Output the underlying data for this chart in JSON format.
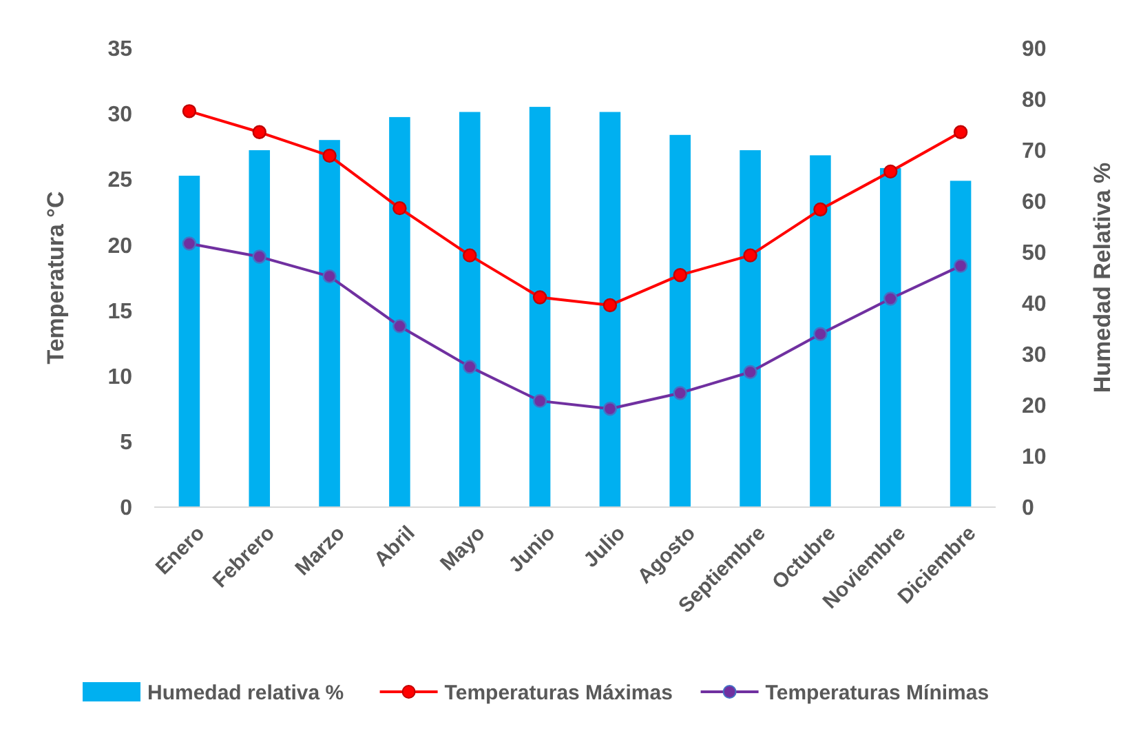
{
  "chart_data": {
    "type": "bar",
    "categories": [
      "Enero",
      "Febrero",
      "Marzo",
      "Abril",
      "Mayo",
      "Junio",
      "Julio",
      "Agosto",
      "Septiembre",
      "Octubre",
      "Noviembre",
      "Diciembre"
    ],
    "ylabel": "Temperatura °C",
    "y2label": "Humedad Relativa %",
    "ylim": [
      0,
      35
    ],
    "yticks": [
      0,
      5,
      10,
      15,
      20,
      25,
      30,
      35
    ],
    "y2lim": [
      0,
      90
    ],
    "y2ticks": [
      0,
      10,
      20,
      30,
      40,
      50,
      60,
      70,
      80,
      90
    ],
    "grid": false,
    "legend": "bottom",
    "marker": "circle",
    "series": [
      {
        "name": "Humedad relativa %",
        "axis": "y2",
        "color": "#00b0f0",
        "values": [
          65,
          70,
          72,
          76.5,
          77.5,
          78.5,
          77.5,
          73,
          70,
          69,
          66.5,
          64
        ]
      },
      {
        "name": "Temperaturas Máximas",
        "type": "line",
        "color": "#ff0000",
        "values": [
          30.2,
          28.6,
          26.8,
          22.8,
          19.2,
          16,
          15.4,
          17.7,
          19.2,
          22.7,
          25.6,
          28.6
        ]
      },
      {
        "name": "Temperaturas Mínimas",
        "type": "line",
        "color": "#7030a0",
        "values": [
          20.1,
          19.1,
          17.6,
          13.8,
          10.7,
          8.1,
          7.5,
          8.7,
          10.3,
          13.2,
          15.9,
          18.4
        ]
      }
    ]
  }
}
